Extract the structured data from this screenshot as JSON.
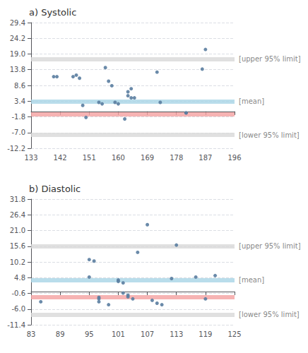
{
  "chart_data": [
    {
      "type": "scatter",
      "title": "a) Systolic",
      "x": [
        140,
        141,
        146,
        147,
        148,
        149,
        150,
        154,
        155,
        156,
        157,
        158,
        159,
        160,
        162,
        163,
        163,
        164,
        164,
        165,
        172,
        173,
        181,
        181,
        186,
        187
      ],
      "values": [
        11.5,
        11.5,
        11.5,
        12.0,
        11.0,
        2.0,
        -2.0,
        3.0,
        2.5,
        14.5,
        10.0,
        8.5,
        3.0,
        2.5,
        -2.5,
        6.5,
        5.2,
        7.5,
        4.5,
        4.5,
        13.0,
        3.0,
        -0.5,
        -0.5,
        14.0,
        20.5
      ],
      "color": "#5a7da0",
      "xlim": [
        133,
        196
      ],
      "ylim": [
        -12.2,
        29.4
      ],
      "xticks": [
        133,
        142,
        151,
        160,
        169,
        178,
        187,
        196
      ],
      "yticks": [
        29.4,
        24.2,
        {
          "value": 19,
          "label": "19.0"
        },
        13.8,
        8.6,
        3.4,
        -1.8,
        {
          "value": -7,
          "label": "-7.0"
        },
        -12.2
      ],
      "grid": true,
      "lines": [
        {
          "y": 17.4,
          "color": "#d8d8d8"
        },
        {
          "y": -7.8,
          "color": "#d8d8d8"
        },
        {
          "y": 3.4,
          "color": "#a8d4e6"
        },
        {
          "y": -1.0,
          "color": "#f4a0a0"
        }
      ],
      "annotations": [
        {
          "text": "[upper 95% limit]",
          "y": 17.4
        },
        {
          "text": "[lower 95% limit]",
          "y": -7.8
        },
        {
          "text": "[mean]",
          "y": 3.4
        }
      ]
    },
    {
      "type": "scatter",
      "title": "b) Diastolic",
      "x": [
        85,
        95,
        95,
        96,
        97,
        97,
        97,
        99,
        101,
        101,
        102,
        102,
        103,
        103,
        104,
        105,
        107,
        108,
        109,
        110,
        112,
        113,
        117,
        119,
        121
      ],
      "values": [
        -3.5,
        5.0,
        11.0,
        10.5,
        -2.0,
        -2.5,
        -3.5,
        -4.5,
        4.0,
        3.5,
        3.0,
        -0.5,
        -1.2,
        -1.8,
        -2.5,
        13.5,
        23.0,
        -3.0,
        -4.0,
        -4.5,
        4.5,
        16.0,
        5.0,
        -2.5,
        5.5
      ],
      "color": "#5a7da0",
      "xlim": [
        83,
        125
      ],
      "ylim": [
        -11.4,
        31.8
      ],
      "xticks": [
        83,
        89,
        95,
        101,
        107,
        113,
        119,
        125
      ],
      "yticks": [
        31.8,
        26.4,
        {
          "value": 21,
          "label": "21.0"
        },
        15.6,
        10.2,
        4.8,
        -0.6,
        {
          "value": -6,
          "label": "-6.0"
        },
        -11.4
      ],
      "grid": true,
      "lines": [
        {
          "y": 15.6,
          "color": "#d8d8d8"
        },
        {
          "y": -8.0,
          "color": "#d8d8d8"
        },
        {
          "y": 4.0,
          "color": "#a8d4e6"
        },
        {
          "y": -1.8,
          "color": "#f4a0a0"
        }
      ],
      "annotations": [
        {
          "text": "[upper 95% limit]",
          "y": 15.6
        },
        {
          "text": "[lower 95% limit]",
          "y": -8.0
        },
        {
          "text": "[mean]",
          "y": 4.0
        }
      ]
    }
  ]
}
